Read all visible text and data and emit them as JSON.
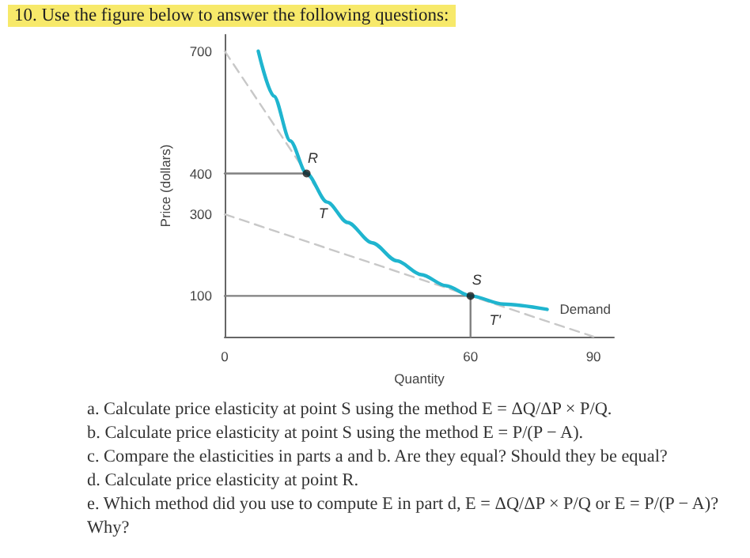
{
  "chart_data": {
    "type": "line",
    "title": "10. Use the figure below to answer the following questions:",
    "xlabel": "Quantity",
    "ylabel": "Price (dollars)",
    "xlim": [
      0,
      95
    ],
    "ylim": [
      0,
      740
    ],
    "xticks": [
      0,
      60,
      90
    ],
    "yticks": [
      100,
      300,
      400,
      700
    ],
    "series": [
      {
        "name": "Demand",
        "color": "#1fb5cf",
        "line_style": "solid",
        "marker": "none",
        "x": [
          8.2,
          12,
          16,
          20,
          25,
          30,
          36,
          42,
          48,
          54,
          60,
          68,
          78.7
        ],
        "values": [
          700,
          590,
          480,
          400,
          330,
          280,
          230,
          186,
          152,
          125,
          100,
          80,
          67
        ]
      },
      {
        "color": "#c8c8c8",
        "line_style": "dashed",
        "marker": "none",
        "x": [
          0,
          24
        ],
        "values": [
          700,
          340
        ]
      },
      {
        "color": "#c8c8c8",
        "line_style": "dashed",
        "marker": "none",
        "x": [
          0,
          90
        ],
        "values": [
          300,
          0
        ]
      },
      {
        "color": "#808080",
        "line_style": "solid",
        "marker": "none",
        "x": [
          0,
          20
        ],
        "values": [
          400,
          400
        ]
      },
      {
        "color": "#808080",
        "line_style": "solid",
        "marker": "none",
        "x": [
          0,
          60
        ],
        "values": [
          100,
          100
        ]
      },
      {
        "color": "#808080",
        "line_style": "solid",
        "marker": "none",
        "x": [
          60,
          60
        ],
        "values": [
          0,
          100
        ]
      },
      {
        "type": "scatter",
        "color": "#1a1a1a",
        "marker": "circle",
        "x": [
          20,
          60
        ],
        "values": [
          400,
          100
        ]
      }
    ],
    "annotations": [
      {
        "text": "R",
        "x": 20,
        "y": 400
      },
      {
        "text": "S",
        "x": 60,
        "y": 100
      },
      {
        "text": "T",
        "x": 24,
        "y": 340
      },
      {
        "text": "T'",
        "x": 66,
        "y": 80
      },
      "a. Calculate price elasticity at point S using the method E = ΔQ/ΔP × P/Q.",
      "b. Calculate price elasticity at point S using the method E = P/(P − A).",
      "c. Compare the elasticities in parts a and b. Are they equal? Should they be equal?",
      "d. Calculate price elasticity at point R.",
      "e. Which method did you use to compute E in part d, E = ΔQ/ΔP × P/Q or E = P/(P − A)? Why?"
    ]
  }
}
